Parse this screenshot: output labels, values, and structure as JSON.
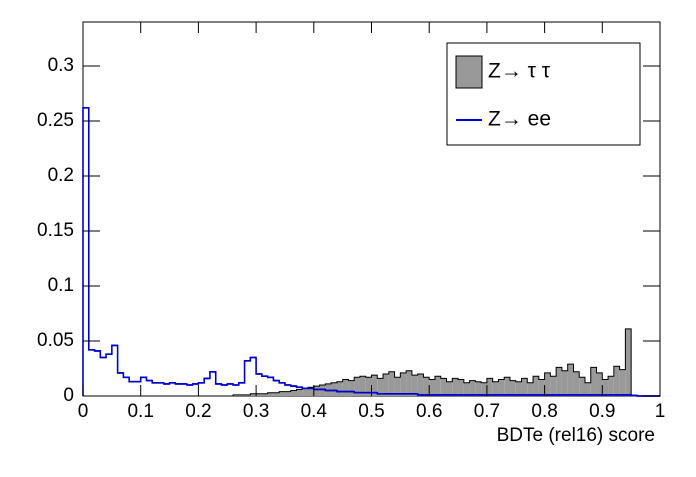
{
  "chart_data": {
    "type": "histogram",
    "x_label": "BDTe (rel16) score",
    "bins": [
      0,
      0.01,
      0.02,
      0.03,
      0.04,
      0.05,
      0.06,
      0.07,
      0.08,
      0.09,
      0.1,
      0.11,
      0.12,
      0.13,
      0.14,
      0.15,
      0.16,
      0.17,
      0.18,
      0.19,
      0.2,
      0.21,
      0.22,
      0.23,
      0.24,
      0.25,
      0.26,
      0.27,
      0.28,
      0.29,
      0.3,
      0.31,
      0.32,
      0.33,
      0.34,
      0.35,
      0.36,
      0.37,
      0.38,
      0.39,
      0.4,
      0.41,
      0.42,
      0.43,
      0.44,
      0.45,
      0.46,
      0.47,
      0.48,
      0.49,
      0.5,
      0.51,
      0.52,
      0.53,
      0.54,
      0.55,
      0.56,
      0.57,
      0.58,
      0.59,
      0.6,
      0.61,
      0.62,
      0.63,
      0.64,
      0.65,
      0.66,
      0.67,
      0.68,
      0.69,
      0.7,
      0.71,
      0.72,
      0.73,
      0.74,
      0.75,
      0.76,
      0.77,
      0.78,
      0.79,
      0.8,
      0.81,
      0.82,
      0.83,
      0.84,
      0.85,
      0.86,
      0.87,
      0.88,
      0.89,
      0.9,
      0.91,
      0.92,
      0.93,
      0.94,
      0.95,
      0.96,
      0.97,
      0.98,
      0.99,
      1
    ],
    "series": [
      {
        "name": "Z→ τ τ",
        "color": "#999999",
        "fill": true,
        "values": [
          0,
          0,
          0,
          0,
          0,
          0,
          0,
          0,
          0,
          0,
          0,
          0,
          0,
          0,
          0,
          0,
          0,
          0,
          0,
          0,
          0,
          0,
          0,
          0,
          0,
          0,
          0.001,
          0.001,
          0.001,
          0.002,
          0.002,
          0.002,
          0.003,
          0.003,
          0.004,
          0.004,
          0.005,
          0.006,
          0.007,
          0.008,
          0.009,
          0.01,
          0.011,
          0.012,
          0.013,
          0.015,
          0.014,
          0.017,
          0.018,
          0.017,
          0.019,
          0.016,
          0.02,
          0.022,
          0.017,
          0.021,
          0.023,
          0.019,
          0.02,
          0.017,
          0.015,
          0.018,
          0.016,
          0.013,
          0.016,
          0.015,
          0.012,
          0.014,
          0.013,
          0.012,
          0.016,
          0.013,
          0.015,
          0.017,
          0.014,
          0.013,
          0.016,
          0.012,
          0.018,
          0.015,
          0.021,
          0.018,
          0.026,
          0.023,
          0.029,
          0.022,
          0.017,
          0.012,
          0.026,
          0.021,
          0.015,
          0.018,
          0.027,
          0.024,
          0.061,
          0,
          0,
          0,
          0,
          0
        ]
      },
      {
        "name": "Z→ ee",
        "color": "#0000cc",
        "fill": false,
        "values": [
          0.262,
          0.042,
          0.041,
          0.035,
          0.038,
          0.046,
          0.021,
          0.017,
          0.013,
          0.013,
          0.017,
          0.014,
          0.012,
          0.012,
          0.011,
          0.012,
          0.011,
          0.011,
          0.01,
          0.011,
          0.012,
          0.016,
          0.022,
          0.011,
          0.01,
          0.011,
          0.01,
          0.012,
          0.032,
          0.035,
          0.02,
          0.018,
          0.017,
          0.014,
          0.012,
          0.01,
          0.009,
          0.008,
          0.007,
          0.007,
          0.006,
          0.006,
          0.005,
          0.005,
          0.004,
          0.004,
          0.004,
          0.003,
          0.003,
          0.003,
          0.003,
          0.002,
          0.002,
          0.002,
          0.002,
          0.002,
          0.002,
          0.002,
          0.001,
          0.001,
          0.001,
          0.001,
          0.001,
          0.001,
          0.001,
          0.001,
          0.001,
          0.001,
          0.001,
          0.001,
          0.001,
          0.001,
          0.001,
          0.001,
          0.001,
          0.001,
          0.001,
          0.001,
          0.001,
          0.001,
          0.001,
          0.001,
          0.001,
          0.001,
          0.001,
          0.001,
          0.001,
          0.001,
          0.001,
          0.001,
          0.001,
          0.001,
          0.001,
          0.001,
          0.001,
          0.0005,
          0,
          0,
          0,
          0
        ]
      }
    ],
    "xlim": [
      0,
      1
    ],
    "ylim": [
      0,
      0.34
    ],
    "xticks": [
      0,
      0.1,
      0.2,
      0.3,
      0.4,
      0.5,
      0.6,
      0.7,
      0.8,
      0.9,
      1
    ],
    "yticks": [
      0,
      0.05,
      0.1,
      0.15,
      0.2,
      0.25,
      0.3
    ],
    "legend": "top-right"
  }
}
